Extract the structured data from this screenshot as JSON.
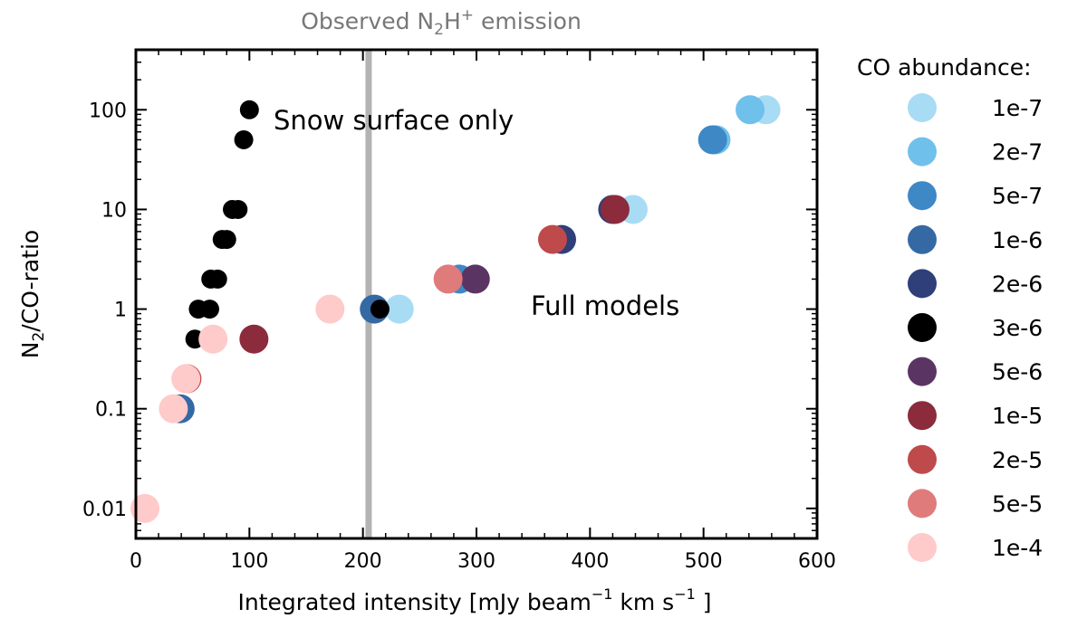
{
  "chart_data": {
    "type": "scatter",
    "title": "",
    "xlabel": "Integrated intensity [mJy beam",
    "xlabel_sup1": "−1",
    "xlabel_mid": " km s",
    "xlabel_sup2": "−1",
    "xlabel_end": " ]",
    "ylabel": "N",
    "ylabel_sub": "2",
    "ylabel_rest": "/CO-ratio",
    "xlim": [
      0,
      600
    ],
    "ylim": [
      0.005,
      400
    ],
    "yscale": "log",
    "grid": false,
    "x_ticks": [
      0,
      100,
      200,
      300,
      400,
      500,
      600
    ],
    "y_ticks": [
      0.01,
      0.1,
      1,
      10,
      100
    ],
    "y_tick_labels": [
      "0.01",
      "0.1",
      "1",
      "10",
      "100"
    ],
    "observed_line": {
      "x": 205,
      "label": "Observed N",
      "label_sub": "2",
      "label_mid": "H",
      "label_sup": "+",
      "label_end": " emission",
      "color": "#b3b3b3"
    },
    "annotations": {
      "snow": "Snow surface only",
      "full": "Full models"
    },
    "legend_title": "CO abundance:",
    "legend_position": "right outside",
    "series": [
      {
        "name": "1e-7",
        "color": "#a8dcf4",
        "points": [
          [
            232,
            1
          ],
          [
            438,
            10
          ],
          [
            555,
            100
          ]
        ]
      },
      {
        "name": "2e-7",
        "color": "#70c0ec",
        "points": [
          [
            511,
            50
          ],
          [
            541,
            100
          ]
        ]
      },
      {
        "name": "5e-7",
        "color": "#3e88c6",
        "points": [
          [
            508,
            50
          ],
          [
            285,
            2
          ]
        ]
      },
      {
        "name": "1e-6",
        "color": "#3569a4",
        "points": [
          [
            39,
            0.1
          ],
          [
            210,
            1
          ]
        ]
      },
      {
        "name": "2e-6",
        "color": "#2e3f7a",
        "points": [
          [
            375,
            5
          ],
          [
            420,
            10
          ]
        ]
      },
      {
        "name": "3e-6",
        "color": "#000000",
        "points": [
          [
            5,
            0.01
          ],
          [
            30,
            0.1
          ],
          [
            40,
            0.2
          ],
          [
            52,
            0.5
          ],
          [
            55,
            1
          ],
          [
            65,
            1
          ],
          [
            66,
            2
          ],
          [
            72,
            2
          ],
          [
            76,
            5
          ],
          [
            80,
            5
          ],
          [
            85,
            10
          ],
          [
            90,
            10
          ],
          [
            95,
            50
          ],
          [
            100,
            100
          ],
          [
            215,
            1
          ]
        ]
      },
      {
        "name": "5e-6",
        "color": "#5a3563",
        "points": [
          [
            299,
            2
          ]
        ]
      },
      {
        "name": "1e-5",
        "color": "#8c2b3c",
        "points": [
          [
            104,
            0.5
          ],
          [
            422,
            10
          ]
        ]
      },
      {
        "name": "2e-5",
        "color": "#bf4a4b",
        "points": [
          [
            45,
            0.2
          ],
          [
            367,
            5
          ]
        ]
      },
      {
        "name": "5e-5",
        "color": "#e07b7b",
        "points": [
          [
            275,
            2
          ]
        ]
      },
      {
        "name": "1e-4",
        "color": "#ffcaca",
        "points": [
          [
            8,
            0.01
          ],
          [
            33,
            0.1
          ],
          [
            44,
            0.2
          ],
          [
            68,
            0.5
          ],
          [
            171,
            1
          ]
        ]
      }
    ]
  }
}
